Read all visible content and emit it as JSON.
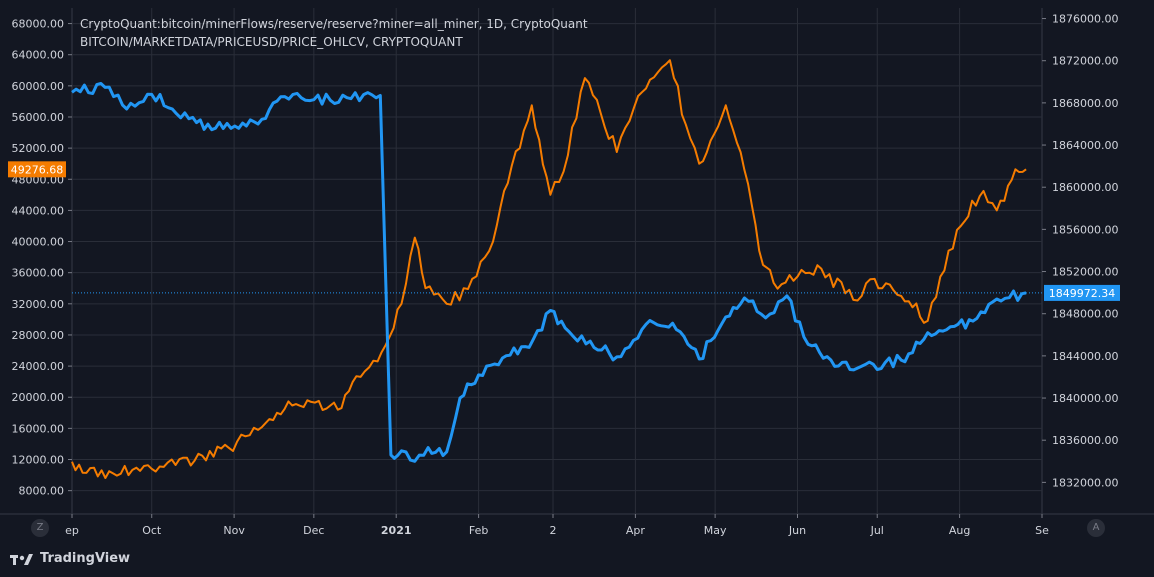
{
  "legend": {
    "line1": "CryptoQuant:bitcoin/minerFlows/reserve/reserve?miner=all_miner, 1D, CryptoQuant",
    "line2": "BITCOIN/MARKETDATA/PRICEUSD/PRICE_OHLCV, CRYPTOQUANT"
  },
  "colors": {
    "background": "#131722",
    "grid": "#2a2e39",
    "axis_text": "#d1d4dc",
    "price_series": "#f57c00",
    "reserve_series": "#2196f3"
  },
  "corner_buttons": {
    "zoom": "Z",
    "auto": "A"
  },
  "branding": {
    "name": "TradingView",
    "icon": "tradingview-logo-icon"
  },
  "chart_data": {
    "type": "line",
    "x_axis": {
      "labels": [
        "ep",
        "Oct",
        "Nov",
        "Dec",
        "2021",
        "Feb",
        "2",
        "Apr",
        "May",
        "Jun",
        "Jul",
        "Aug",
        "Se"
      ],
      "range": [
        "2020-09-01",
        "2021-09-01"
      ]
    },
    "left_axis": {
      "ticks": [
        "68000.00",
        "64000.00",
        "60000.00",
        "56000.00",
        "52000.00",
        "48000.00",
        "44000.00",
        "40000.00",
        "36000.00",
        "32000.00",
        "28000.00",
        "24000.00",
        "20000.00",
        "16000.00",
        "12000.00",
        "8000.00"
      ],
      "range": [
        5000,
        70000
      ]
    },
    "right_axis": {
      "ticks": [
        "1876000.00",
        "1872000.00",
        "1868000.00",
        "1864000.00",
        "1860000.00",
        "1856000.00",
        "1852000.00",
        "1848000.00",
        "1844000.00",
        "1840000.00",
        "1836000.00",
        "1832000.00"
      ],
      "range": [
        1829000,
        1877000
      ]
    },
    "last_value_labels": {
      "price": "49276.68",
      "reserve": "1849972.34"
    },
    "series": [
      {
        "axis": "left",
        "color": "#f57c00",
        "x": [
          "2020-09-01",
          "2020-09-05",
          "2020-09-15",
          "2020-10-01",
          "2020-10-10",
          "2020-10-20",
          "2020-10-30",
          "2020-11-10",
          "2020-11-20",
          "2020-11-30",
          "2020-12-10",
          "2020-12-17",
          "2020-12-25",
          "2021-01-03",
          "2021-01-08",
          "2021-01-12",
          "2021-01-20",
          "2021-01-28",
          "2021-02-05",
          "2021-02-12",
          "2021-02-21",
          "2021-02-28",
          "2021-03-05",
          "2021-03-13",
          "2021-03-25",
          "2021-04-02",
          "2021-04-14",
          "2021-04-20",
          "2021-04-25",
          "2021-05-05",
          "2021-05-12",
          "2021-05-19",
          "2021-05-23",
          "2021-06-01",
          "2021-06-10",
          "2021-06-22",
          "2021-06-30",
          "2021-07-10",
          "2021-07-20",
          "2021-07-31",
          "2021-08-10",
          "2021-08-15",
          "2021-08-22",
          "2021-08-26"
        ],
        "values": [
          11700,
          10300,
          10500,
          10800,
          11300,
          12500,
          13500,
          15800,
          18500,
          19400,
          18400,
          22700,
          24600,
          32000,
          40500,
          34000,
          32000,
          33900,
          38800,
          47500,
          57500,
          46000,
          49000,
          61000,
          51500,
          58700,
          63300,
          55000,
          50000,
          57500,
          49200,
          37000,
          34700,
          35500,
          36500,
          32500,
          35200,
          33000,
          29800,
          41500,
          46500,
          44000,
          49276,
          49276
        ]
      },
      {
        "axis": "right",
        "color": "#2196f3",
        "x": [
          "2020-09-01",
          "2020-09-15",
          "2020-09-20",
          "2020-10-01",
          "2020-10-15",
          "2020-10-25",
          "2020-11-10",
          "2020-11-20",
          "2020-12-01",
          "2020-12-15",
          "2020-12-26",
          "2020-12-30",
          "2021-01-03",
          "2021-01-08",
          "2021-01-13",
          "2021-01-20",
          "2021-01-25",
          "2021-02-01",
          "2021-02-10",
          "2021-02-20",
          "2021-02-28",
          "2021-03-07",
          "2021-03-15",
          "2021-03-25",
          "2021-04-05",
          "2021-04-15",
          "2021-04-25",
          "2021-05-05",
          "2021-05-12",
          "2021-05-20",
          "2021-05-28",
          "2021-06-05",
          "2021-06-15",
          "2021-06-25",
          "2021-07-10",
          "2021-07-20",
          "2021-07-30",
          "2021-08-06",
          "2021-08-15",
          "2021-08-26"
        ],
        "values": [
          1869000,
          1869500,
          1867800,
          1868800,
          1866500,
          1865600,
          1866000,
          1868600,
          1868300,
          1868400,
          1868700,
          1834600,
          1835000,
          1834000,
          1835300,
          1834900,
          1840000,
          1842200,
          1843800,
          1844800,
          1848300,
          1846300,
          1845400,
          1843900,
          1847000,
          1847100,
          1843700,
          1847700,
          1849500,
          1847600,
          1849700,
          1845100,
          1843000,
          1843000,
          1843600,
          1846200,
          1846800,
          1847300,
          1849400,
          1849972
        ]
      }
    ]
  }
}
